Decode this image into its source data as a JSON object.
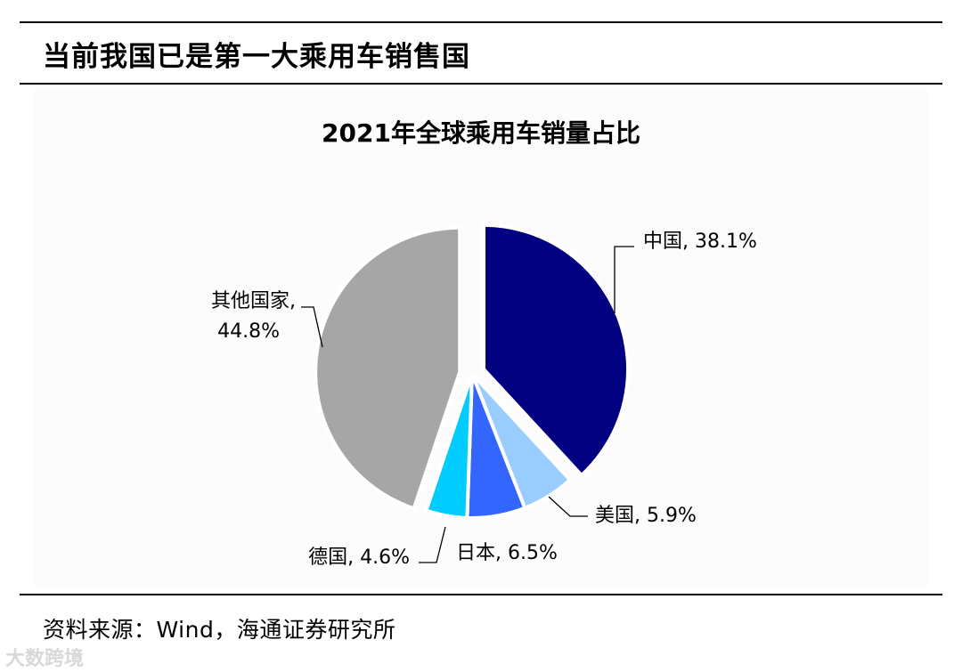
{
  "header": {
    "title": "当前我国已是第一大乘用车销售国"
  },
  "source": {
    "text": "资料来源：Wind，海通证券研究所"
  },
  "watermark": {
    "text": "大数跨境"
  },
  "chart_data": {
    "type": "pie",
    "title": "2021年全球乘用车销量占比",
    "slices": [
      {
        "label": "中国",
        "display": "中国, 38.1%",
        "value": 38.1,
        "color": "#000080"
      },
      {
        "label": "美国",
        "display": "美国, 5.9%",
        "value": 5.9,
        "color": "#99ccff"
      },
      {
        "label": "日本",
        "display": "日本, 6.5%",
        "value": 6.5,
        "color": "#3366ff"
      },
      {
        "label": "德国",
        "display": "德国, 4.6%",
        "value": 4.6,
        "color": "#00ccff"
      },
      {
        "label": "其他国家",
        "display_lines": [
          "其他国家,",
          "44.8%"
        ],
        "value": 44.8,
        "color": "#a6a6a6"
      }
    ],
    "start_angle_deg": 0,
    "direction": "clockwise",
    "exploded": [
      "中国",
      "其他国家"
    ]
  }
}
